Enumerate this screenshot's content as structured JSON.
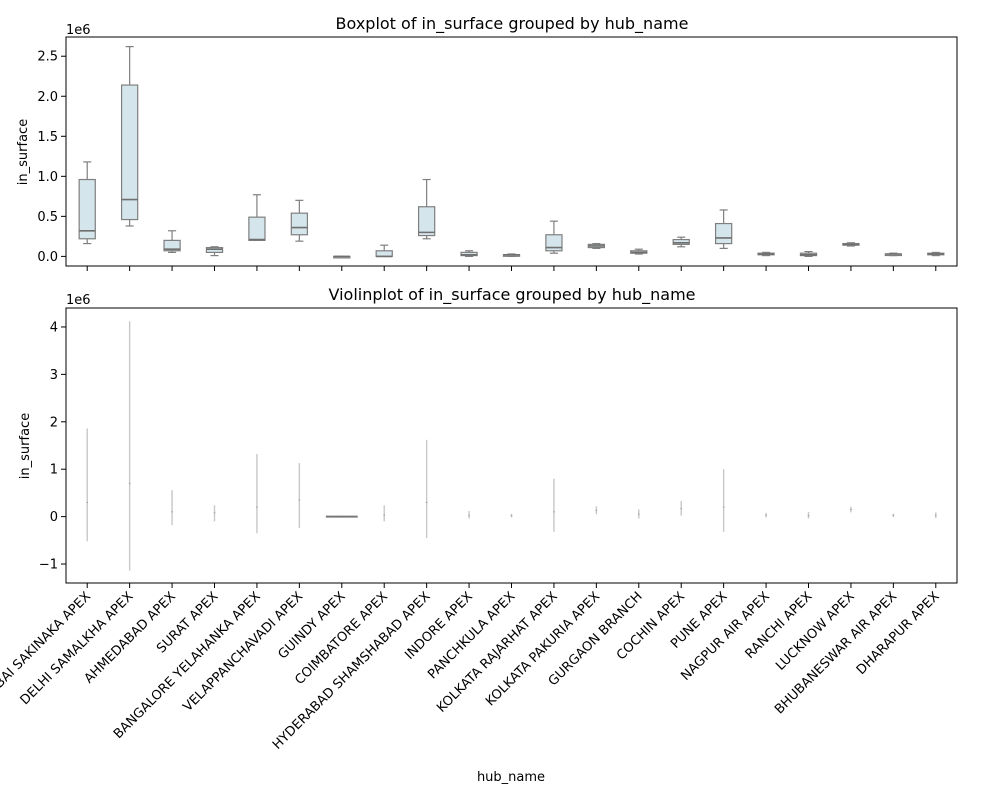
{
  "chart_data": [
    {
      "type": "boxplot",
      "title": "Boxplot of in_surface grouped by hub_name",
      "ylabel": "in_surface",
      "xlabel": "",
      "y_offset_label": "1e6",
      "ylim": [
        -0.12,
        2.74
      ],
      "yticks": [
        0.0,
        0.5,
        1.0,
        1.5,
        2.0,
        2.5
      ],
      "ytick_labels": [
        "0.0",
        "0.5",
        "1.0",
        "1.5",
        "2.0",
        "2.5"
      ],
      "box_color": "#d4e6ec",
      "edge_color": "#7f7f7f",
      "categories": [
        "MUMBAI SAKINAKA APEX",
        "DELHI SAMALKHA APEX",
        "AHMEDABAD APEX",
        "SURAT APEX",
        "BANGALORE YELAHANKA APEX",
        "VELAPPANCHAVADI APEX",
        "GUINDY APEX",
        "COIMBATORE APEX",
        "HYDERABAD SHAMSHABAD APEX",
        "INDORE APEX",
        "PANCHKULA APEX",
        "KOLKATA RAJARHAT APEX",
        "KOLKATA PAKURIA APEX",
        "GURGAON BRANCH",
        "COCHIN APEX",
        "PUNE APEX",
        "NAGPUR AIR APEX",
        "RANCHI APEX",
        "LUCKNOW APEX",
        "BHUBANESWAR AIR APEX",
        "DHARAPUR APEX"
      ],
      "boxes": [
        {
          "whislo": 0.16,
          "q1": 0.22,
          "med": 0.32,
          "q3": 0.96,
          "whishi": 1.18
        },
        {
          "whislo": 0.38,
          "q1": 0.46,
          "med": 0.71,
          "q3": 2.14,
          "whishi": 2.62
        },
        {
          "whislo": 0.05,
          "q1": 0.07,
          "med": 0.09,
          "q3": 0.2,
          "whishi": 0.32
        },
        {
          "whislo": 0.01,
          "q1": 0.05,
          "med": 0.09,
          "q3": 0.11,
          "whishi": 0.12
        },
        {
          "whislo": 0.2,
          "q1": 0.2,
          "med": 0.21,
          "q3": 0.49,
          "whishi": 0.77
        },
        {
          "whislo": 0.19,
          "q1": 0.27,
          "med": 0.36,
          "q3": 0.54,
          "whishi": 0.7
        },
        {
          "whislo": -0.01,
          "q1": -0.01,
          "med": 0.0,
          "q3": 0.0,
          "whishi": 0.0
        },
        {
          "whislo": 0.0,
          "q1": 0.0,
          "med": 0.0,
          "q3": 0.07,
          "whishi": 0.14
        },
        {
          "whislo": 0.22,
          "q1": 0.26,
          "med": 0.3,
          "q3": 0.62,
          "whishi": 0.96
        },
        {
          "whislo": 0.0,
          "q1": 0.01,
          "med": 0.02,
          "q3": 0.05,
          "whishi": 0.07
        },
        {
          "whislo": 0.0,
          "q1": 0.01,
          "med": 0.02,
          "q3": 0.02,
          "whishi": 0.03
        },
        {
          "whislo": 0.04,
          "q1": 0.07,
          "med": 0.11,
          "q3": 0.27,
          "whishi": 0.44
        },
        {
          "whislo": 0.1,
          "q1": 0.11,
          "med": 0.13,
          "q3": 0.15,
          "whishi": 0.16
        },
        {
          "whislo": 0.03,
          "q1": 0.04,
          "med": 0.05,
          "q3": 0.07,
          "whishi": 0.09
        },
        {
          "whislo": 0.12,
          "q1": 0.15,
          "med": 0.17,
          "q3": 0.21,
          "whishi": 0.24
        },
        {
          "whislo": 0.1,
          "q1": 0.16,
          "med": 0.23,
          "q3": 0.41,
          "whishi": 0.58
        },
        {
          "whislo": 0.01,
          "q1": 0.02,
          "med": 0.03,
          "q3": 0.04,
          "whishi": 0.05
        },
        {
          "whislo": 0.0,
          "q1": 0.01,
          "med": 0.02,
          "q3": 0.04,
          "whishi": 0.06
        },
        {
          "whislo": 0.13,
          "q1": 0.14,
          "med": 0.15,
          "q3": 0.16,
          "whishi": 0.17
        },
        {
          "whislo": 0.01,
          "q1": 0.02,
          "med": 0.03,
          "q3": 0.03,
          "whishi": 0.04
        },
        {
          "whislo": 0.01,
          "q1": 0.02,
          "med": 0.03,
          "q3": 0.04,
          "whishi": 0.05
        }
      ]
    },
    {
      "type": "violin",
      "title": "Violinplot of in_surface grouped by hub_name",
      "ylabel": "in_surface",
      "xlabel": "hub_name",
      "y_offset_label": "1e6",
      "ylim": [
        -1.4,
        4.4
      ],
      "yticks": [
        -1,
        0,
        1,
        2,
        3,
        4
      ],
      "ytick_labels": [
        "−1",
        "0",
        "1",
        "2",
        "3",
        "4"
      ],
      "line_color": "#c8c8c8",
      "categories": [
        "MUMBAI SAKINAKA APEX",
        "DELHI SAMALKHA APEX",
        "AHMEDABAD APEX",
        "SURAT APEX",
        "BANGALORE YELAHANKA APEX",
        "VELAPPANCHAVADI APEX",
        "GUINDY APEX",
        "COIMBATORE APEX",
        "HYDERABAD SHAMSHABAD APEX",
        "INDORE APEX",
        "PANCHKULA APEX",
        "KOLKATA RAJARHAT APEX",
        "KOLKATA PAKURIA APEX",
        "GURGAON BRANCH",
        "COCHIN APEX",
        "PUNE APEX",
        "NAGPUR AIR APEX",
        "RANCHI APEX",
        "LUCKNOW APEX",
        "BHUBANESWAR AIR APEX",
        "DHARAPUR APEX"
      ],
      "violins": [
        {
          "min": -0.52,
          "max": 1.86,
          "center": 0.3,
          "width": 0.0
        },
        {
          "min": -1.14,
          "max": 4.12,
          "center": 0.7,
          "width": 0.0
        },
        {
          "min": -0.18,
          "max": 0.56,
          "center": 0.1,
          "width": 0.0
        },
        {
          "min": -0.1,
          "max": 0.24,
          "center": 0.08,
          "width": 0.0
        },
        {
          "min": -0.35,
          "max": 1.32,
          "center": 0.2,
          "width": 0.0
        },
        {
          "min": -0.24,
          "max": 1.13,
          "center": 0.35,
          "width": 0.0
        },
        {
          "min": -0.02,
          "max": 0.02,
          "center": 0.0,
          "width": 0.75
        },
        {
          "min": -0.1,
          "max": 0.24,
          "center": 0.03,
          "width": 0.0
        },
        {
          "min": -0.45,
          "max": 1.62,
          "center": 0.3,
          "width": 0.0
        },
        {
          "min": -0.04,
          "max": 0.12,
          "center": 0.02,
          "width": 0.0
        },
        {
          "min": -0.02,
          "max": 0.06,
          "center": 0.02,
          "width": 0.0
        },
        {
          "min": -0.32,
          "max": 0.8,
          "center": 0.1,
          "width": 0.0
        },
        {
          "min": 0.05,
          "max": 0.22,
          "center": 0.13,
          "width": 0.0
        },
        {
          "min": -0.04,
          "max": 0.15,
          "center": 0.05,
          "width": 0.0
        },
        {
          "min": 0.02,
          "max": 0.33,
          "center": 0.17,
          "width": 0.0
        },
        {
          "min": -0.32,
          "max": 1.0,
          "center": 0.2,
          "width": 0.0
        },
        {
          "min": -0.02,
          "max": 0.08,
          "center": 0.03,
          "width": 0.0
        },
        {
          "min": -0.04,
          "max": 0.1,
          "center": 0.02,
          "width": 0.0
        },
        {
          "min": 0.09,
          "max": 0.21,
          "center": 0.15,
          "width": 0.0
        },
        {
          "min": -0.01,
          "max": 0.06,
          "center": 0.03,
          "width": 0.0
        },
        {
          "min": -0.03,
          "max": 0.09,
          "center": 0.03,
          "width": 0.0
        }
      ]
    }
  ]
}
